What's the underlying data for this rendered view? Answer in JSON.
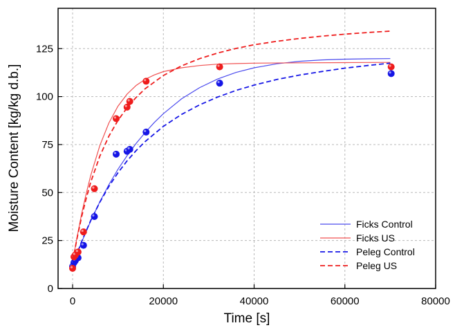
{
  "chart_data": {
    "type": "scatter",
    "xlabel": "Time [s]",
    "ylabel": "Moisture Content [kg/kg d.b.]",
    "xlim": [
      -3200,
      80000
    ],
    "ylim": [
      0,
      146
    ],
    "xticks": [
      0,
      20000,
      40000,
      60000,
      80000
    ],
    "yticks": [
      0,
      25,
      50,
      75,
      100,
      125
    ],
    "grid": true,
    "legend_position": "bottom-right",
    "points": [
      {
        "color": "#1515e6",
        "x": [
          0,
          300,
          600,
          1200,
          2400,
          4800,
          9600,
          12000,
          12600,
          16200,
          32400,
          70200
        ],
        "y": [
          11.5,
          13.5,
          14.5,
          16,
          22.5,
          37.5,
          70,
          71.5,
          72.5,
          81.5,
          107,
          112
        ]
      },
      {
        "color": "#ee1c1c",
        "x": [
          0,
          300,
          600,
          1200,
          2400,
          4800,
          9600,
          12000,
          12600,
          16200,
          32400,
          70200
        ],
        "y": [
          10.5,
          16.5,
          17.5,
          19,
          29.5,
          52,
          88.5,
          94.5,
          97.5,
          108,
          115.5,
          115.5
        ]
      }
    ],
    "series": [
      {
        "name": "Ficks Control",
        "color": "#4a4aee",
        "style": "solid",
        "x": [
          0,
          2000,
          4000,
          6000,
          8000,
          10000,
          12000,
          14000,
          16000,
          18000,
          20000,
          24000,
          28000,
          32000,
          36000,
          40000,
          45000,
          50000,
          55000,
          60000,
          65000,
          70000
        ],
        "y": [
          12,
          24.2,
          35.3,
          45.2,
          54.1,
          62.1,
          69.2,
          75.6,
          81.3,
          86.5,
          91.1,
          98.8,
          104.7,
          109.2,
          112.6,
          115,
          117.1,
          118.4,
          119.1,
          119.5,
          119.7,
          119.8
        ]
      },
      {
        "name": "Ficks US",
        "color": "#f05050",
        "style": "solid",
        "x": [
          0,
          1000,
          2000,
          3000,
          4000,
          6000,
          8000,
          10000,
          12000,
          14000,
          16000,
          18000,
          20000,
          24000,
          28000,
          32000,
          36000,
          40000,
          50000,
          60000,
          70000
        ],
        "y": [
          14,
          27,
          39,
          49.5,
          59,
          74.5,
          86.3,
          95,
          101.3,
          105.8,
          109,
          111.3,
          113,
          115,
          116.2,
          116.9,
          117.2,
          117.4,
          117.6,
          117.7,
          117.8
        ]
      },
      {
        "name": "Peleg Control",
        "color": "#1515e6",
        "style": "dashed",
        "x": [
          0,
          2000,
          4000,
          6000,
          8000,
          10000,
          12000,
          14000,
          16000,
          20000,
          24000,
          28000,
          32000,
          36000,
          40000,
          45000,
          50000,
          55000,
          60000,
          65000,
          70000
        ],
        "y": [
          12,
          24.5,
          35.5,
          45,
          53.2,
          60.3,
          66.5,
          71.9,
          76.6,
          84.5,
          90.7,
          95.7,
          99.8,
          103.2,
          106,
          108.9,
          111.2,
          113.1,
          114.8,
          116.2,
          117.4
        ]
      },
      {
        "name": "Peleg US",
        "color": "#ee1c1c",
        "style": "dashed",
        "x": [
          0,
          1000,
          2000,
          3000,
          4000,
          6000,
          8000,
          10000,
          12000,
          14000,
          16000,
          20000,
          24000,
          28000,
          32000,
          36000,
          40000,
          45000,
          50000,
          55000,
          60000,
          65000,
          70000
        ],
        "y": [
          14,
          26.5,
          37.5,
          47,
          55.5,
          69,
          79.4,
          87.6,
          94.2,
          99.6,
          104.1,
          111,
          116,
          119.8,
          122.7,
          125.1,
          127,
          128.8,
          130.3,
          131.5,
          132.5,
          133.4,
          134.1
        ]
      }
    ]
  }
}
